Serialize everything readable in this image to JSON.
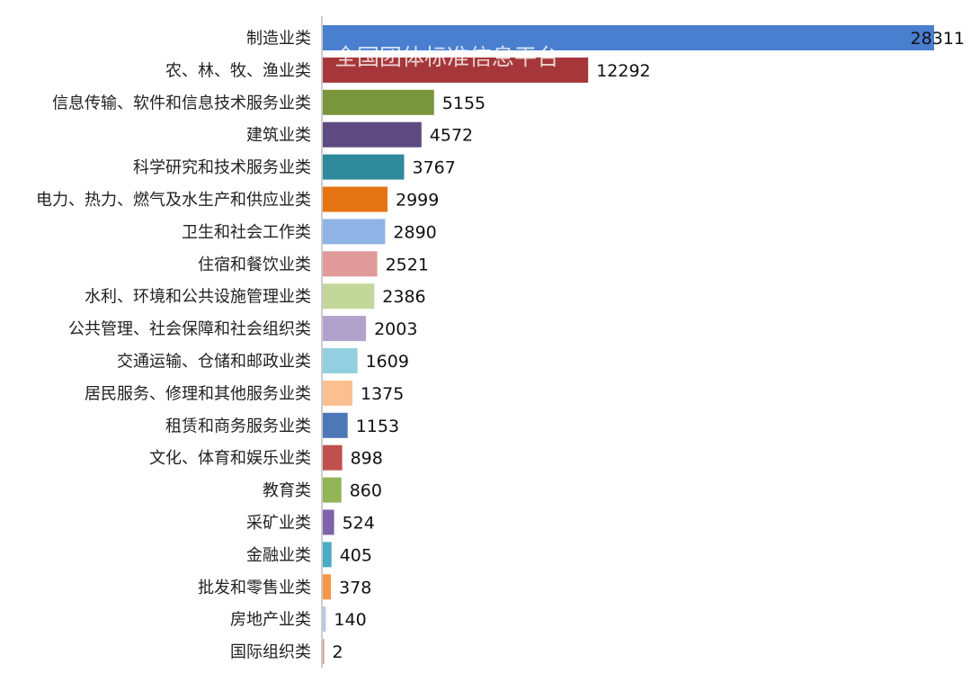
{
  "watermark": "全国团体标准信息平台",
  "chart_data": {
    "type": "bar",
    "orientation": "horizontal",
    "title": "",
    "xlabel": "",
    "ylabel": "",
    "categories": [
      "制造业类",
      "农、林、牧、渔业类",
      "信息传输、软件和信息技术服务业类",
      "建筑业类",
      "科学研究和技术服务业类",
      "电力、热力、燃气及水生产和供应业类",
      "卫生和社会工作类",
      "住宿和餐饮业类",
      "水利、环境和公共设施管理业类",
      "公共管理、社会保障和社会组织类",
      "交通运输、仓储和邮政业类",
      "居民服务、修理和其他服务业类",
      "租赁和商务服务业类",
      "文化、体育和娱乐业类",
      "教育类",
      "采矿业类",
      "金融业类",
      "批发和零售业类",
      "房地产业类",
      "国际组织类"
    ],
    "values": [
      28311,
      12292,
      5155,
      4572,
      3767,
      2999,
      2890,
      2521,
      2386,
      2003,
      1609,
      1375,
      1153,
      898,
      860,
      524,
      405,
      378,
      140,
      2
    ],
    "colors": [
      "#4a7fd0",
      "#a5373a",
      "#79963c",
      "#5c4a80",
      "#2f8a9c",
      "#e57414",
      "#8fb3e4",
      "#e09a99",
      "#c3d79b",
      "#b1a2cb",
      "#93cfe0",
      "#fbc091",
      "#4e77b8",
      "#c0504d",
      "#92b456",
      "#7f63a8",
      "#4aacc6",
      "#f79646",
      "#b8c8e6",
      "#d99694"
    ],
    "xlim": [
      0,
      28311
    ],
    "grid": false,
    "legend": "none"
  }
}
